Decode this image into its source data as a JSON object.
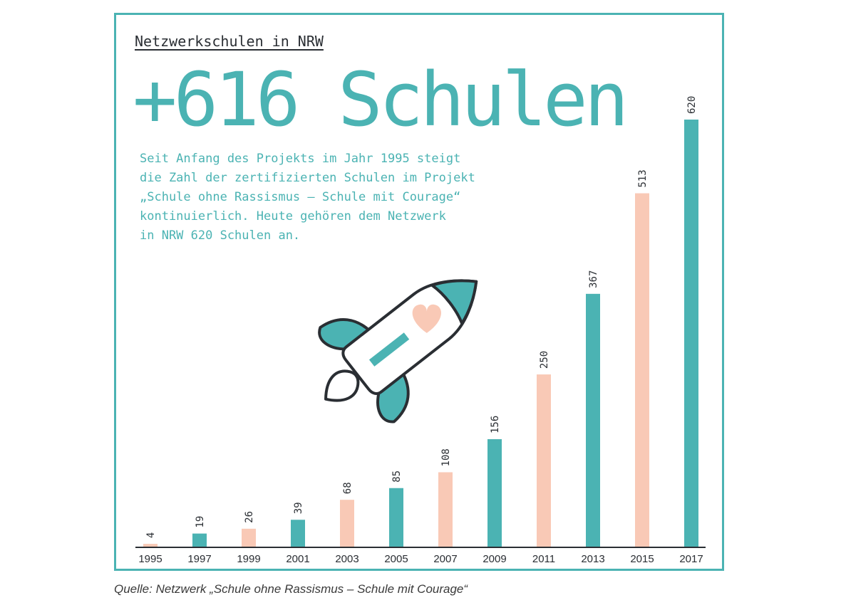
{
  "header": {
    "label": "Netzwerkschulen in NRW"
  },
  "headline": "+616 Schulen",
  "description": {
    "lines": [
      "Seit Anfang des Projekts im Jahr 1995 steigt",
      "die Zahl der zertifizierten Schulen im Projekt",
      "„Schule ohne Rassismus – Schule mit Courage“",
      "kontinuierlich. Heute gehören dem Netzwerk",
      "in NRW 620 Schulen an."
    ]
  },
  "source": "Quelle: Netzwerk „Schule ohne Rassismus – Schule mit Courage“",
  "colors": {
    "teal": "#4bb3b3",
    "peach": "#f9c9b6",
    "dark": "#2a2e33"
  },
  "chart_data": {
    "type": "bar",
    "categories": [
      "1995",
      "1997",
      "1999",
      "2001",
      "2003",
      "2005",
      "2007",
      "2009",
      "2011",
      "2013",
      "2015",
      "2017"
    ],
    "values": [
      4,
      19,
      26,
      39,
      68,
      85,
      108,
      156,
      250,
      367,
      513,
      620
    ],
    "bar_colors": [
      "peach",
      "teal",
      "peach",
      "teal",
      "peach",
      "teal",
      "peach",
      "teal",
      "peach",
      "teal",
      "peach",
      "teal"
    ],
    "ylim": [
      0,
      620
    ],
    "grid": false,
    "legend": "none",
    "data_labels": true
  }
}
